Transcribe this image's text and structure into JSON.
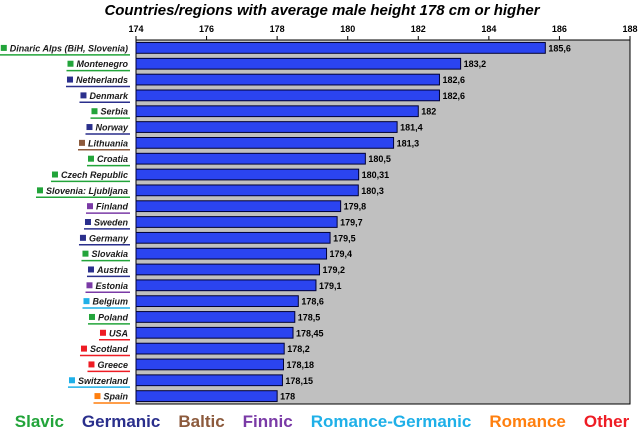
{
  "chart_data": {
    "type": "bar",
    "orientation": "horizontal",
    "title": "Countries/regions with average male height 178 cm or higher",
    "xlim": [
      174,
      188
    ],
    "xticks": [
      "174",
      "176",
      "178",
      "180",
      "182",
      "184",
      "186",
      "188"
    ],
    "grid": false,
    "legend_placement": "bottom",
    "bar_color": "#2b44f0",
    "plot_background": "#c0c0c0",
    "categories": [
      {
        "label": "Dinaric Alps (BiH, Slovenia)",
        "value": 185.6,
        "value_label": "185,6",
        "group": "Slavic"
      },
      {
        "label": "Montenegro",
        "value": 183.2,
        "value_label": "183,2",
        "group": "Slavic"
      },
      {
        "label": "Netherlands",
        "value": 182.6,
        "value_label": "182,6",
        "group": "Germanic"
      },
      {
        "label": "Denmark",
        "value": 182.6,
        "value_label": "182,6",
        "group": "Germanic"
      },
      {
        "label": "Serbia",
        "value": 182,
        "value_label": "182",
        "group": "Slavic"
      },
      {
        "label": "Norway",
        "value": 181.4,
        "value_label": "181,4",
        "group": "Germanic"
      },
      {
        "label": "Lithuania",
        "value": 181.3,
        "value_label": "181,3",
        "group": "Baltic"
      },
      {
        "label": "Croatia",
        "value": 180.5,
        "value_label": "180,5",
        "group": "Slavic"
      },
      {
        "label": "Czech Republic",
        "value": 180.31,
        "value_label": "180,31",
        "group": "Slavic"
      },
      {
        "label": "Slovenia: Ljubljana",
        "value": 180.3,
        "value_label": "180,3",
        "group": "Slavic"
      },
      {
        "label": "Finland",
        "value": 179.8,
        "value_label": "179,8",
        "group": "Finnic"
      },
      {
        "label": "Sweden",
        "value": 179.7,
        "value_label": "179,7",
        "group": "Germanic"
      },
      {
        "label": "Germany",
        "value": 179.5,
        "value_label": "179,5",
        "group": "Germanic"
      },
      {
        "label": "Slovakia",
        "value": 179.4,
        "value_label": "179,4",
        "group": "Slavic"
      },
      {
        "label": "Austria",
        "value": 179.2,
        "value_label": "179,2",
        "group": "Germanic"
      },
      {
        "label": "Estonia",
        "value": 179.1,
        "value_label": "179,1",
        "group": "Finnic"
      },
      {
        "label": "Belgium",
        "value": 178.6,
        "value_label": "178,6",
        "group": "Romance-Germanic"
      },
      {
        "label": "Poland",
        "value": 178.5,
        "value_label": "178,5",
        "group": "Slavic"
      },
      {
        "label": "USA",
        "value": 178.45,
        "value_label": "178,45",
        "group": "Other"
      },
      {
        "label": "Scotland",
        "value": 178.2,
        "value_label": "178,2",
        "group": "Other"
      },
      {
        "label": "Greece",
        "value": 178.18,
        "value_label": "178,18",
        "group": "Other"
      },
      {
        "label": "Switzerland",
        "value": 178.15,
        "value_label": "178,15",
        "group": "Romance-Germanic"
      },
      {
        "label": "Spain",
        "value": 178,
        "value_label": "178",
        "group": "Romance"
      }
    ],
    "legend": [
      {
        "name": "Slavic",
        "color": "#22a43a"
      },
      {
        "name": "Germanic",
        "color": "#2a2f8c"
      },
      {
        "name": "Baltic",
        "color": "#8c5a3c"
      },
      {
        "name": "Finnic",
        "color": "#7a3aa6"
      },
      {
        "name": "Romance-Germanic",
        "color": "#1fb0e8"
      },
      {
        "name": "Romance",
        "color": "#ff7f0e"
      },
      {
        "name": "Other",
        "color": "#ee1c24"
      }
    ]
  }
}
